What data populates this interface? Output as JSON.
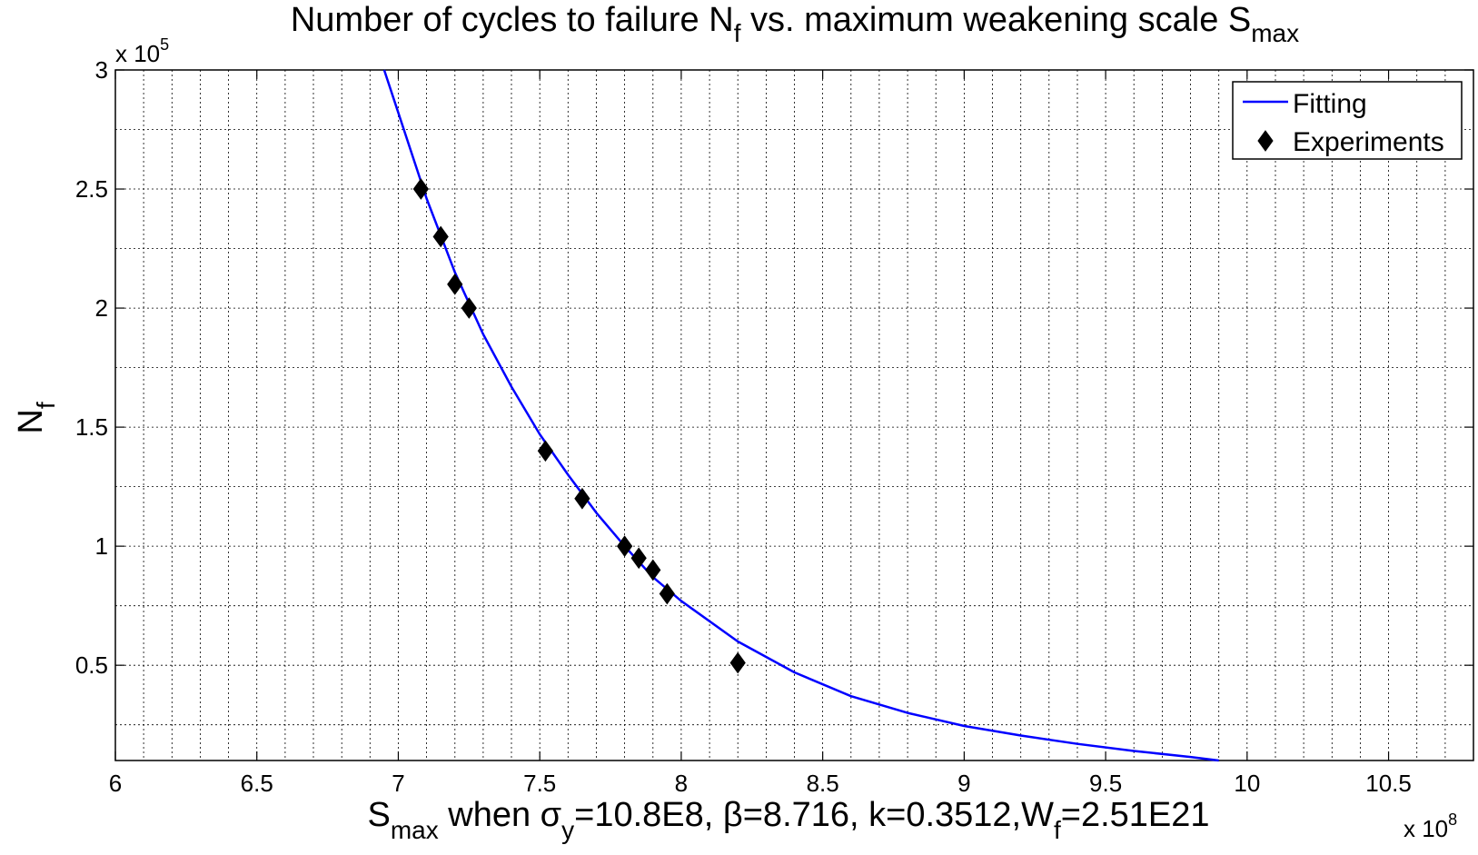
{
  "chart_data": {
    "type": "line",
    "title": {
      "main": "Number of cycles to failure N",
      "sub1": "f",
      "mid": " vs. maximum weakening  scale S",
      "sub2": "max"
    },
    "xlabel": {
      "p1": "S",
      "s1": "max",
      "p2": " when σ",
      "s2": "y",
      "p3": "=10.8E8, β=8.716, k=0.3512,W",
      "s3": "f",
      "p4": "=2.51E21"
    },
    "ylabel": {
      "main": "N",
      "sub": "f"
    },
    "x_multiplier": {
      "base": "x 10",
      "exp": "8"
    },
    "y_multiplier": {
      "base": "x 10",
      "exp": "5"
    },
    "xlim": [
      6.0,
      10.8
    ],
    "ylim": [
      0.1,
      3.0
    ],
    "x_ticks": [
      6,
      6.5,
      7,
      7.5,
      8,
      8.5,
      9,
      9.5,
      10,
      10.5
    ],
    "x_tick_labels": [
      "6",
      "6.5",
      "7",
      "7.5",
      "8",
      "8.5",
      "9",
      "9.5",
      "10",
      "10.5"
    ],
    "y_ticks": [
      0.5,
      1,
      1.5,
      2,
      2.5,
      3
    ],
    "y_tick_labels": [
      "0.5",
      "1",
      "1.5",
      "2",
      "2.5",
      "3"
    ],
    "grid": true,
    "legend_position": "top-right",
    "series": [
      {
        "name": "Fitting",
        "kind": "line",
        "color": "#0000ff",
        "x": [
          6.95,
          7.0,
          7.1,
          7.2,
          7.3,
          7.4,
          7.5,
          7.6,
          7.7,
          7.8,
          7.9,
          8.0,
          8.2,
          8.4,
          8.6,
          8.8,
          9.0,
          9.2,
          9.4,
          9.6,
          9.8,
          9.9
        ],
        "y": [
          3.0,
          2.82,
          2.46,
          2.15,
          1.89,
          1.67,
          1.47,
          1.3,
          1.14,
          1.0,
          0.87,
          0.77,
          0.6,
          0.47,
          0.37,
          0.3,
          0.245,
          0.205,
          0.17,
          0.14,
          0.115,
          0.1
        ]
      },
      {
        "name": "Experiments",
        "kind": "scatter",
        "color": "#000000",
        "x": [
          7.08,
          7.15,
          7.2,
          7.25,
          7.52,
          7.65,
          7.8,
          7.85,
          7.9,
          7.95,
          8.2
        ],
        "y": [
          2.5,
          2.3,
          2.1,
          2.0,
          1.4,
          1.2,
          1.0,
          0.95,
          0.9,
          0.8,
          0.51
        ]
      }
    ]
  }
}
